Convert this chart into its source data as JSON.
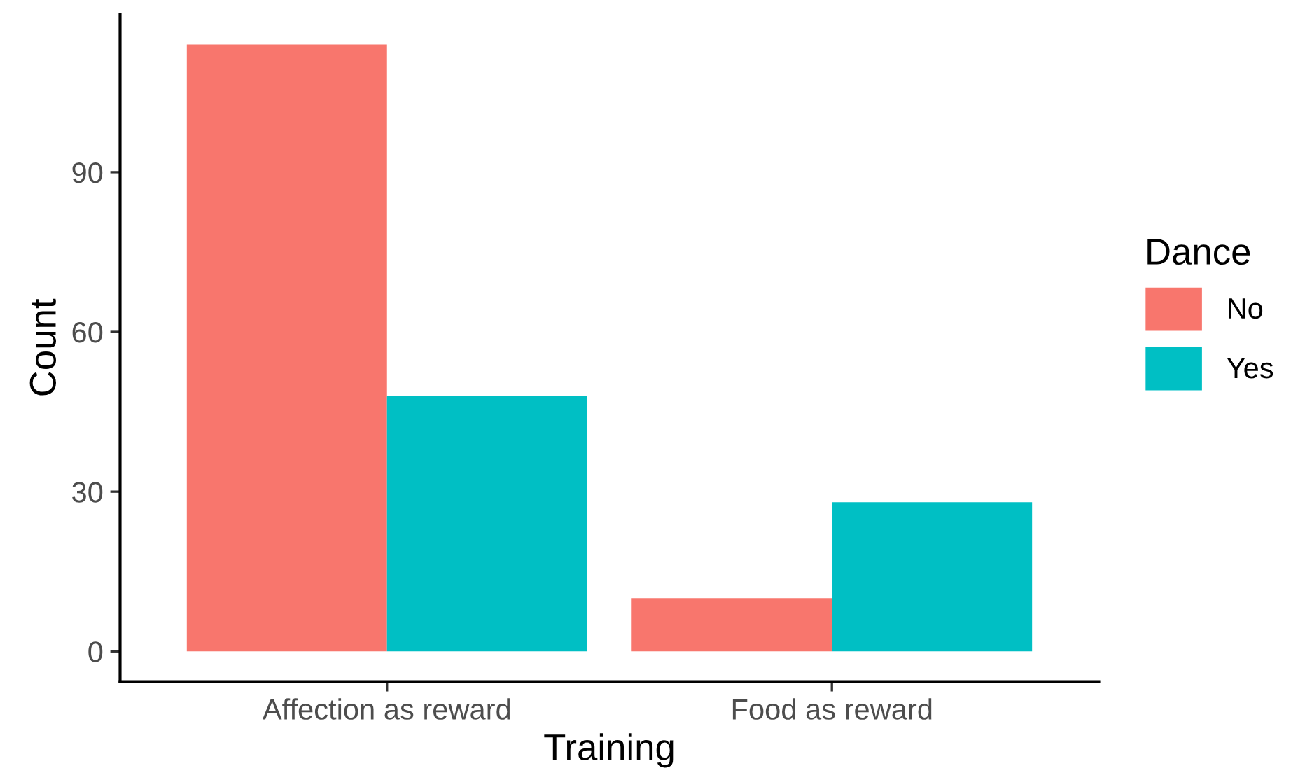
{
  "chart_data": {
    "type": "bar",
    "xlabel": "Training",
    "ylabel": "Count",
    "legend_title": "Dance",
    "categories": [
      "Affection as reward",
      "Food as reward"
    ],
    "series": [
      {
        "name": "No",
        "color": "#f8766d",
        "values": [
          114,
          10
        ]
      },
      {
        "name": "Yes",
        "color": "#00bfc4",
        "values": [
          48,
          28
        ]
      }
    ],
    "ylim": [
      -5.7,
      119.7
    ],
    "yticks": [
      0,
      30,
      60,
      90
    ],
    "grid": false,
    "legend": "right"
  }
}
